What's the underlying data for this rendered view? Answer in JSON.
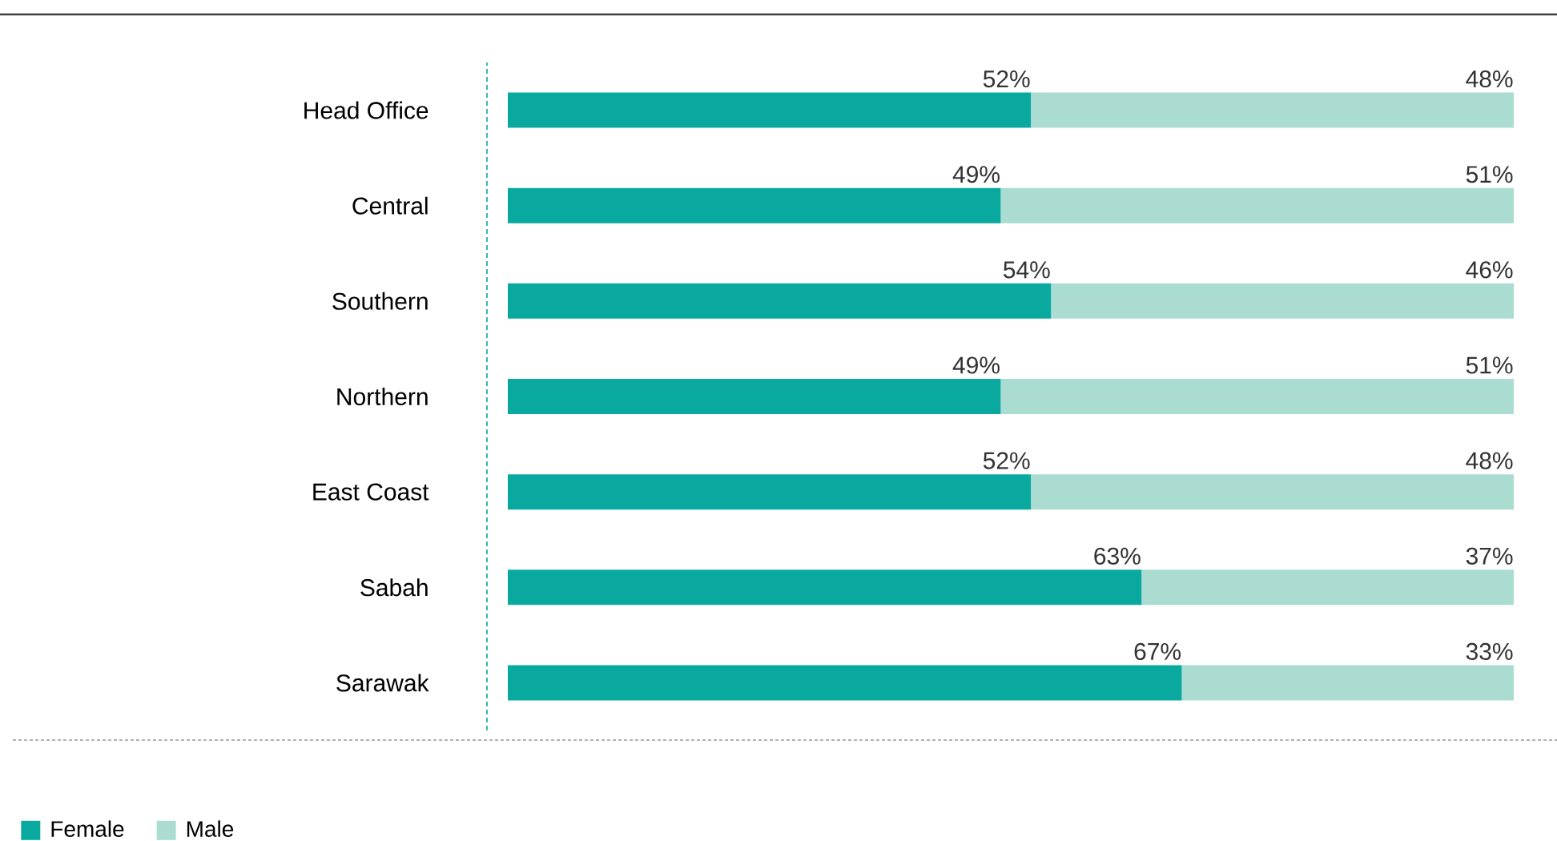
{
  "chart_data": {
    "type": "bar",
    "orientation": "horizontal",
    "stacked": true,
    "legend": "bottom left",
    "tick_labels": "y",
    "categories": [
      "Head Office",
      "Central",
      "Southern",
      "Northern",
      "East Coast",
      "Sabah",
      "Sarawak"
    ],
    "series": [
      {
        "name": "Female",
        "color": "#0aa9a0",
        "values": [
          52,
          49,
          54,
          49,
          52,
          63,
          67
        ],
        "value_labels": [
          "52%",
          "49%",
          "54%",
          "49%",
          "52%",
          "63%",
          "67%"
        ]
      },
      {
        "name": "Male",
        "color": "#aadcd2",
        "values": [
          48,
          51,
          46,
          51,
          48,
          37,
          33
        ],
        "value_labels": [
          "48%",
          "51%",
          "46%",
          "51%",
          "48%",
          "37%",
          "33%"
        ]
      }
    ]
  }
}
